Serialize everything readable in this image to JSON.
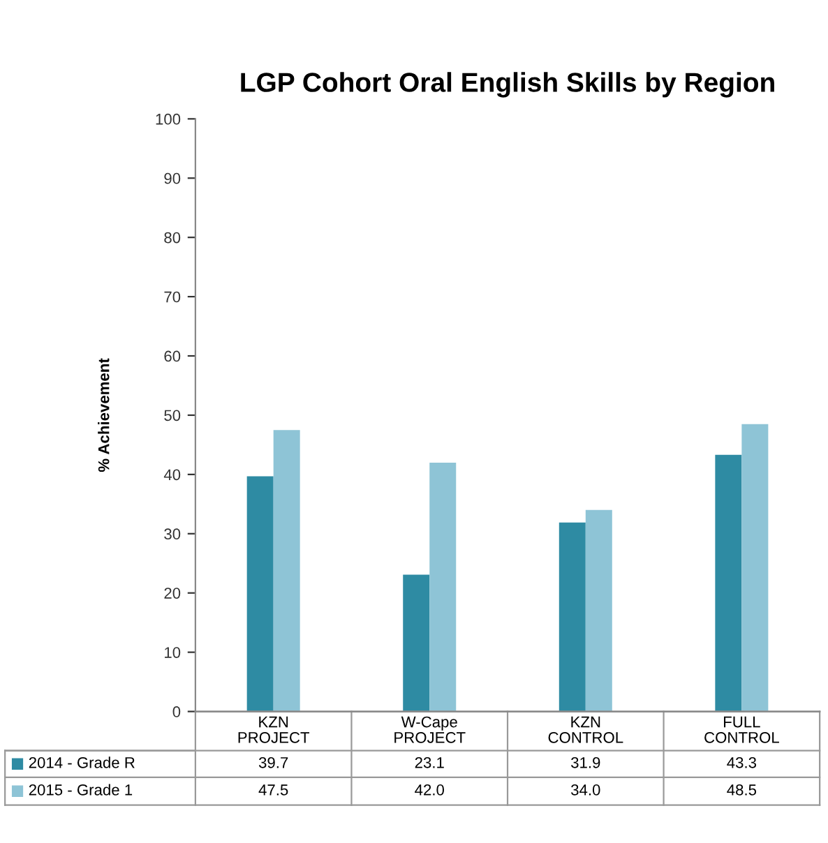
{
  "chart_data": {
    "type": "bar",
    "title": "LGP Cohort Oral English Skills by Region",
    "ylabel": "% Achievement",
    "categories": [
      "KZN\nPROJECT",
      "W-Cape\nPROJECT",
      "KZN\nCONTROL",
      "FULL\nCONTROL"
    ],
    "series": [
      {
        "name": "2014 - Grade R",
        "color": "#2e8ba3",
        "values": [
          39.7,
          23.1,
          31.9,
          43.3
        ],
        "value_labels": [
          "39.7",
          "23.1",
          "31.9",
          "43.3"
        ]
      },
      {
        "name": "2015 - Grade 1",
        "color": "#8ec4d6",
        "values": [
          47.5,
          42.0,
          34.0,
          48.5
        ],
        "value_labels": [
          "47.5",
          "42.0",
          "34.0",
          "48.5"
        ]
      }
    ],
    "ylim": [
      0,
      100
    ],
    "yticks": [
      0,
      10,
      20,
      30,
      40,
      50,
      60,
      70,
      80,
      90,
      100
    ],
    "legend": "bottom"
  }
}
